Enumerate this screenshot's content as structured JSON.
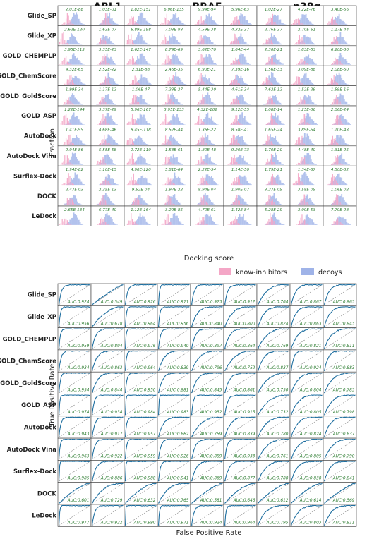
{
  "colors": {
    "inhibitors": "#f4a6c6",
    "decoys": "#9fb3e8",
    "roc": "#1f6fa0",
    "diag": "#888888",
    "stat": "#2e7d32"
  },
  "targets": [
    "ABL1",
    "BRAF",
    "p38α"
  ],
  "methods": [
    "Glide_SP",
    "Glide_XP",
    "GOLD_CHEMPLP",
    "GOLD_ChemScore",
    "GOLD_GoldScore",
    "GOLD_ASP",
    "AutoDock",
    "AutoDock Vina",
    "Surflex-Dock",
    "DOCK",
    "LeDock"
  ],
  "hist_panel": {
    "ylabel": "Fraction",
    "xlabel": "Docking score"
  },
  "roc_panel": {
    "ylabel": "True Positive Rate",
    "xlabel": "False Positive Rate"
  },
  "legend": {
    "inhibitors": "know-inhibitors",
    "decoys": "decoys"
  },
  "chart_data": [
    {
      "type": "histogram",
      "title": "",
      "xlabel": "Docking score",
      "ylabel": "Fraction",
      "series_names": [
        "know-inhibitors",
        "decoys"
      ],
      "columns": [
        "ABL1",
        "ABL1",
        "ABL1",
        "BRAF",
        "BRAF",
        "BRAF",
        "p38α",
        "p38α",
        "p38α"
      ],
      "rows": [
        "Glide_SP",
        "Glide_XP",
        "GOLD_CHEMPLP",
        "GOLD_ChemScore",
        "GOLD_GoldScore",
        "GOLD_ASP",
        "AutoDock",
        "AutoDock Vina",
        "Surflex-Dock",
        "DOCK",
        "LeDock"
      ],
      "p_values": [
        [
          "2.01E-88",
          "1.03E-01",
          "1.82E-151",
          "6.96E-135",
          "9.94E-94",
          "5.96E-63",
          "1.02E-27",
          "4.22E-76",
          "3.40E-56"
        ],
        [
          "2.62E-120",
          "1.63E-07",
          "6.89E-198",
          "7.03E-88",
          "4.59E-38",
          "4.32E-37",
          "2.76E-37",
          "2.70E-61",
          "1.17E-44"
        ],
        [
          "3.95E-113",
          "3.35E-23",
          "1.62E-147",
          "8.79E-69",
          "3.62E-70",
          "1.64E-44",
          "2.30E-21",
          "1.83E-53",
          "6.20E-30"
        ],
        [
          "4.32E-65",
          "2.52E-22",
          "2.31E-88",
          "2.45E-35",
          "6.90E-21",
          "7.39E-16",
          "1.56E-33",
          "3.09E-88",
          "2.08E-50"
        ],
        [
          "1.99E-34",
          "1.17E-12",
          "1.06E-47",
          "7.23E-27",
          "5.44E-30",
          "4.61E-34",
          "7.62E-12",
          "1.52E-29",
          "1.59E-16"
        ],
        [
          "1.22E-144",
          "3.37E-29",
          "5.96E-167",
          "3.95E-133",
          "4.32E-102",
          "9.12E-55",
          "1.08E-14",
          "1.25E-36",
          "2.06E-24"
        ],
        [
          "1.41E-95",
          "4.68E-46",
          "8.45E-118",
          "8.52E-44",
          "1.36E-22",
          "8.58E-41",
          "1.65E-24",
          "3.89E-54",
          "1.10E-43"
        ],
        [
          "2.94E-86",
          "5.55E-58",
          "2.72E-110",
          "1.53E-61",
          "1.80E-48",
          "9.20E-73",
          "1.70E-20",
          "4.48E-40",
          "1.31E-25"
        ],
        [
          "1.94E-82",
          "1.10E-15",
          "4.90E-120",
          "5.81E-64",
          "2.22E-54",
          "1.14E-50",
          "1.79E-21",
          "1.34E-67",
          "4.50E-32"
        ],
        [
          "2.47E-03",
          "2.35E-13",
          "9.52E-04",
          "1.97E-22",
          "8.94E-04",
          "1.90E-07",
          "3.27E-05",
          "3.58E-05",
          "1.06E-02"
        ],
        [
          "2.65E-134",
          "6.77E-40",
          "1.12E-164",
          "3.29E-85",
          "4.70E-61",
          "1.42E-84",
          "5.28E-29",
          "3.09E-53",
          "7.79E-28"
        ]
      ]
    },
    {
      "type": "line",
      "title": "",
      "xlabel": "False Positive Rate",
      "ylabel": "True Positive Rate",
      "columns": [
        "ABL1",
        "ABL1",
        "ABL1",
        "BRAF",
        "BRAF",
        "BRAF",
        "p38α",
        "p38α",
        "p38α"
      ],
      "rows": [
        "Glide_SP",
        "Glide_XP",
        "GOLD_CHEMPLP",
        "GOLD_ChemScore",
        "GOLD_GoldScore",
        "GOLD_ASP",
        "AutoDock",
        "AutoDock Vina",
        "Surflex-Dock",
        "DOCK",
        "LeDock"
      ],
      "xlim": [
        0,
        1
      ],
      "ylim": [
        0,
        1
      ],
      "auc": [
        [
          "AUC:0.924",
          "AUC:0.549",
          "AUC:0.926",
          "AUC:0.971",
          "AUC:0.923",
          "AUC:0.912",
          "AUC:0.764",
          "AUC:0.867",
          "AUC:0.863"
        ],
        [
          "AUC:0.956",
          "AUC:0.678",
          "AUC:0.964",
          "AUC:0.956",
          "AUC:0.840",
          "AUC:0.800",
          "AUC:0.824",
          "AUC:0.863",
          "AUC:0.843"
        ],
        [
          "AUC:0.959",
          "AUC:0.894",
          "AUC:0.976",
          "AUC:0.940",
          "AUC:0.897",
          "AUC:0.864",
          "AUC:0.769",
          "AUC:0.821",
          "AUC:0.811"
        ],
        [
          "AUC:0.934",
          "AUC:0.863",
          "AUC:0.964",
          "AUC:0.839",
          "AUC:0.796",
          "AUC:0.752",
          "AUC:0.837",
          "AUC:0.924",
          "AUC:0.883"
        ],
        [
          "AUC:0.954",
          "AUC:0.844",
          "AUC:0.950",
          "AUC:0.881",
          "AUC:0.845",
          "AUC:0.861",
          "AUC:0.750",
          "AUC:0.804",
          "AUC:0.783"
        ],
        [
          "AUC:0.974",
          "AUC:0.934",
          "AUC:0.984",
          "AUC:0.983",
          "AUC:0.952",
          "AUC:0.915",
          "AUC:0.732",
          "AUC:0.805",
          "AUC:0.798"
        ],
        [
          "AUC:0.943",
          "AUC:0.917",
          "AUC:0.957",
          "AUC:0.862",
          "AUC:0.759",
          "AUC:0.839",
          "AUC:0.780",
          "AUC:0.824",
          "AUC:0.837"
        ],
        [
          "AUC:0.963",
          "AUC:0.922",
          "AUC:0.959",
          "AUC:0.926",
          "AUC:0.889",
          "AUC:0.933",
          "AUC:0.761",
          "AUC:0.805",
          "AUC:0.790"
        ],
        [
          "AUC:0.985",
          "AUC:0.886",
          "AUC:0.988",
          "AUC:0.941",
          "AUC:0.869",
          "AUC:0.877",
          "AUC:0.788",
          "AUC:0.838",
          "AUC:0.841"
        ],
        [
          "AUC:0.601",
          "AUC:0.729",
          "AUC:0.632",
          "AUC:0.765",
          "AUC:0.581",
          "AUC:0.646",
          "AUC:0.612",
          "AUC:0.614",
          "AUC:0.569"
        ],
        [
          "AUC:0.977",
          "AUC:0.922",
          "AUC:0.990",
          "AUC:0.971",
          "AUC:0.924",
          "AUC:0.964",
          "AUC:0.795",
          "AUC:0.803",
          "AUC:0.811"
        ]
      ]
    }
  ]
}
